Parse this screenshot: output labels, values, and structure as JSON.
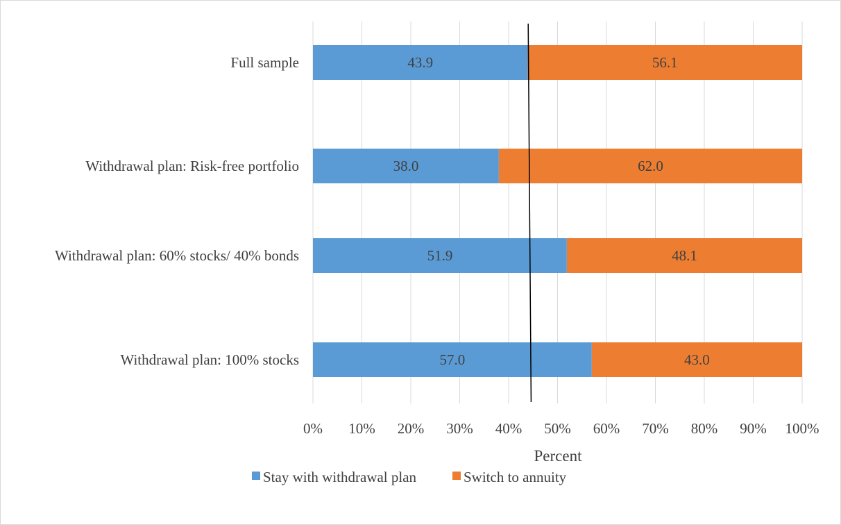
{
  "chart_data": {
    "type": "bar",
    "orientation": "horizontal",
    "stacked": true,
    "categories": [
      "Full sample",
      "Withdrawal plan: Risk-free portfolio",
      "Withdrawal plan: 60% stocks/ 40% bonds",
      "Withdrawal plan: 100% stocks"
    ],
    "series": [
      {
        "name": "Stay with withdrawal plan",
        "color": "#5b9bd5",
        "values": [
          43.9,
          38.0,
          51.9,
          57.0
        ]
      },
      {
        "name": "Switch to annuity",
        "color": "#ed7d31",
        "values": [
          56.1,
          62.0,
          48.1,
          43.0
        ]
      }
    ],
    "data_labels": [
      [
        "43.9",
        "38.0",
        "51.9",
        "57.0"
      ],
      [
        "56.1",
        "62.0",
        "48.1",
        "43.0"
      ]
    ],
    "xlabel": "Percent",
    "ylabel": "",
    "title": "",
    "xlim": [
      0,
      100
    ],
    "x_ticks": [
      0,
      10,
      20,
      30,
      40,
      50,
      60,
      70,
      80,
      90,
      100
    ],
    "x_tick_labels": [
      "0%",
      "10%",
      "20%",
      "30%",
      "40%",
      "50%",
      "60%",
      "70%",
      "80%",
      "90%",
      "100%"
    ],
    "reference_line": {
      "x_top": 44.0,
      "x_bottom": 44.6
    },
    "grid": true,
    "legend_position": "bottom"
  }
}
